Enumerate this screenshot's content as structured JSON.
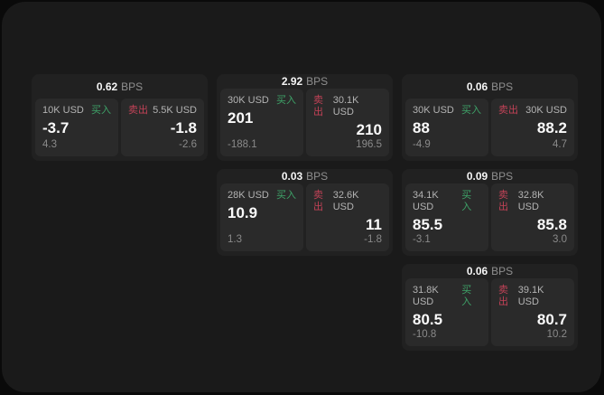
{
  "app": {
    "unit_label": "BPS",
    "buy_label": "买入",
    "sell_label": "卖出"
  },
  "colors": {
    "buy_green": "#3ea268",
    "sell_red": "#c24257",
    "panel_bg": "#1a1a1a",
    "card_bg": "#212121",
    "tile_bg": "#2a2a2a",
    "outer_bg": "#0a0a0a"
  },
  "cards": [
    {
      "spread": "0.62",
      "buy": {
        "amount": "10K USD",
        "price": "-3.7",
        "delta": "4.3"
      },
      "sell": {
        "amount": "5.5K USD",
        "price": "-1.8",
        "delta": "-2.6"
      }
    },
    {
      "spread": "2.92",
      "buy": {
        "amount": "30K USD",
        "price": "201",
        "delta": "-188.1"
      },
      "sell": {
        "amount": "30.1K USD",
        "price": "210",
        "delta": "196.5"
      }
    },
    {
      "spread": "0.06",
      "buy": {
        "amount": "30K USD",
        "price": "88",
        "delta": "-4.9"
      },
      "sell": {
        "amount": "30K USD",
        "price": "88.2",
        "delta": "4.7"
      }
    },
    {
      "spread": "0.03",
      "buy": {
        "amount": "28K USD",
        "price": "10.9",
        "delta": "1.3"
      },
      "sell": {
        "amount": "32.6K USD",
        "price": "11",
        "delta": "-1.8"
      }
    },
    {
      "spread": "0.09",
      "buy": {
        "amount": "34.1K USD",
        "price": "85.5",
        "delta": "-3.1"
      },
      "sell": {
        "amount": "32.8K USD",
        "price": "85.8",
        "delta": "3.0"
      }
    },
    {
      "spread": "0.06",
      "buy": {
        "amount": "31.8K USD",
        "price": "80.5",
        "delta": "-10.8"
      },
      "sell": {
        "amount": "39.1K USD",
        "price": "80.7",
        "delta": "10.2"
      }
    }
  ]
}
